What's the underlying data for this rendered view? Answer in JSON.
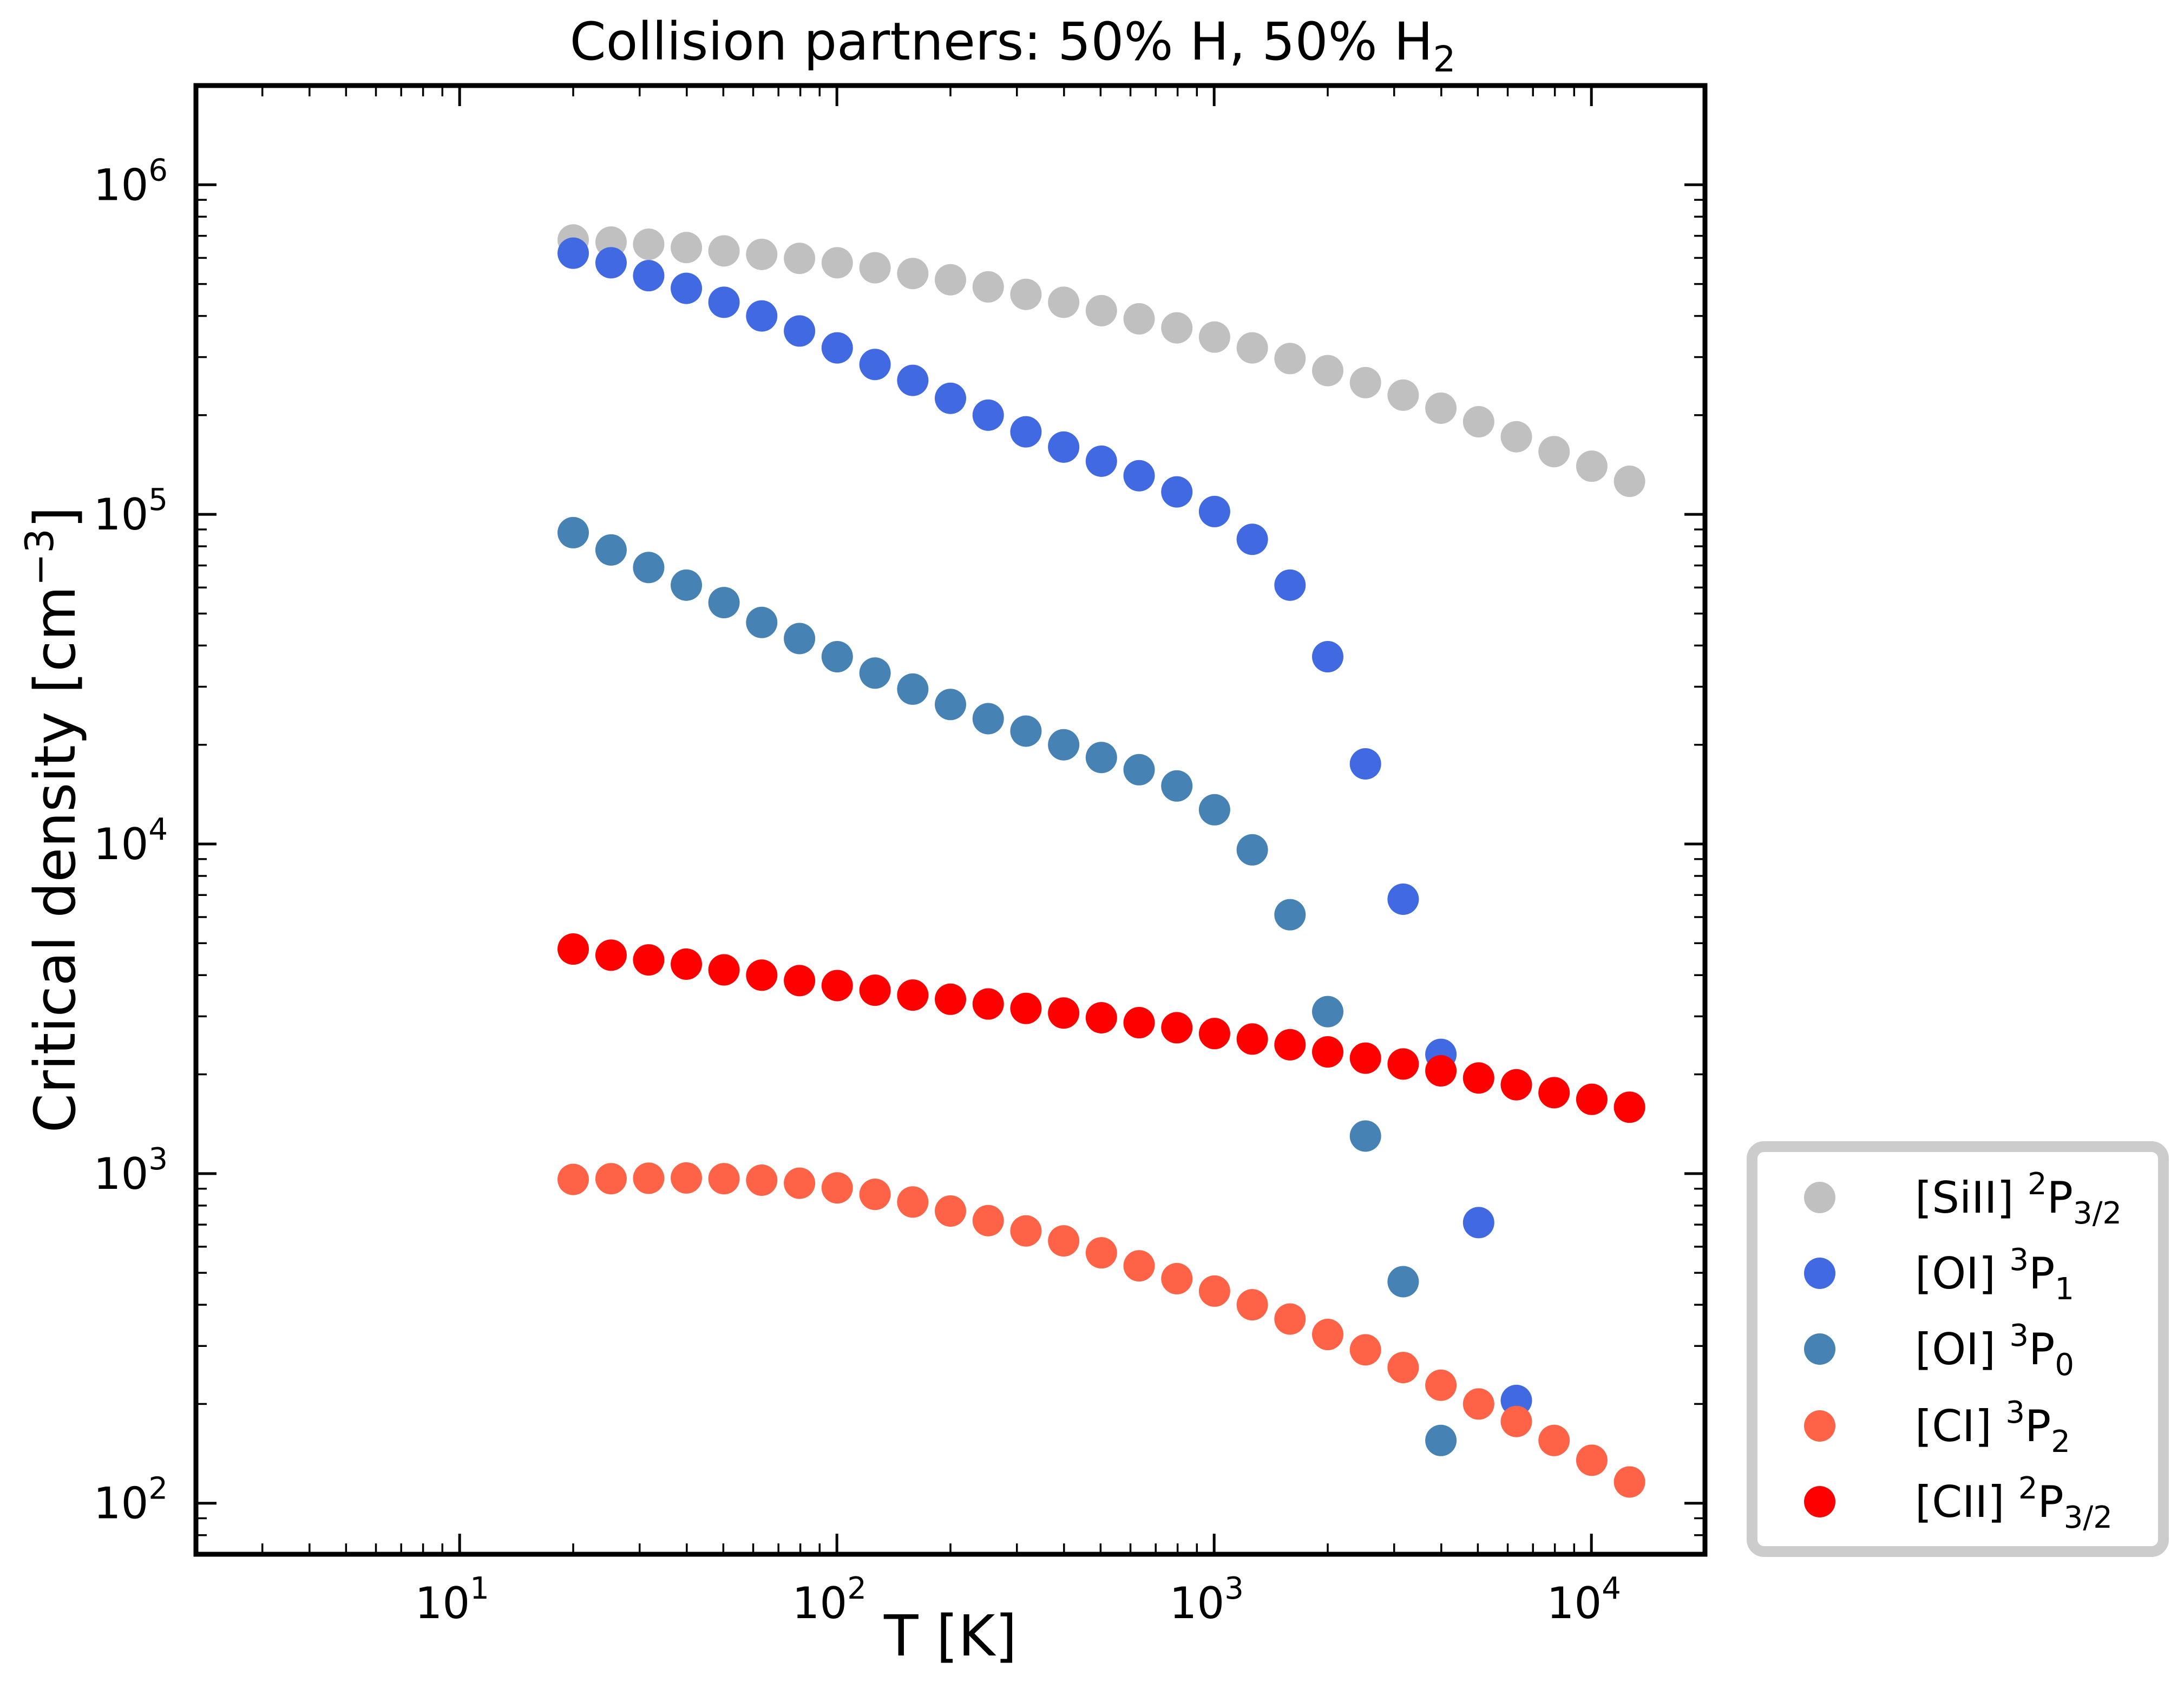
{
  "chart_data": {
    "type": "scatter",
    "title": "Collision partners: 50% H, 50% H",
    "title_subscript": "2",
    "xlabel": "T [K]",
    "ylabel": "Critical density [cm",
    "ylabel_superscript": "−3",
    "ylabel_suffix": "]",
    "xscale": "log",
    "yscale": "log",
    "xlim": [
      2,
      20000
    ],
    "ylim": [
      70,
      2000000
    ],
    "x_ticks": [
      {
        "value": 10,
        "base": "10",
        "exp": "1"
      },
      {
        "value": 100,
        "base": "10",
        "exp": "2"
      },
      {
        "value": 1000,
        "base": "10",
        "exp": "3"
      },
      {
        "value": 10000,
        "base": "10",
        "exp": "4"
      }
    ],
    "y_ticks": [
      {
        "value": 100,
        "base": "10",
        "exp": "2"
      },
      {
        "value": 1000,
        "base": "10",
        "exp": "3"
      },
      {
        "value": 10000,
        "base": "10",
        "exp": "4"
      },
      {
        "value": 100000,
        "base": "10",
        "exp": "5"
      },
      {
        "value": 1000000,
        "base": "10",
        "exp": "6"
      }
    ],
    "grid": false,
    "legend_position": "outside-lower-right",
    "series": [
      {
        "name": "[SiII] 2P3/2",
        "legend": {
          "prefix": "[SiII] ",
          "sup": "2",
          "main": "P",
          "sub": "3/2"
        },
        "color": "#c0c0c0",
        "x": [
          20,
          25.2,
          31.7,
          39.9,
          50.2,
          63.2,
          79.6,
          100.2,
          126.2,
          158.9,
          200,
          251.8,
          317,
          399.1,
          502.4,
          632.5,
          796.3,
          1002.4,
          1262,
          1588.7,
          2000,
          2517.9,
          3169.8,
          3990.5,
          5023.8,
          6324.6,
          7962.1,
          10023.7,
          12619.1
        ],
        "y": [
          680000,
          670000,
          660000,
          645000,
          630000,
          615000,
          598000,
          580000,
          560000,
          538000,
          515000,
          490000,
          465000,
          440000,
          415000,
          392000,
          368000,
          345000,
          320000,
          297000,
          273000,
          251000,
          230000,
          210000,
          191000,
          172000,
          155000,
          140000,
          126000
        ]
      },
      {
        "name": "[OI] 3P1",
        "legend": {
          "prefix": "[OI] ",
          "sup": "3",
          "main": "P",
          "sub": "1"
        },
        "color": "#4169e1",
        "x": [
          20,
          25.2,
          31.7,
          39.9,
          50.2,
          63.2,
          79.6,
          100.2,
          126.2,
          158.9,
          200,
          251.8,
          317,
          399.1,
          502.4,
          632.5,
          796.3,
          1002.4,
          1262,
          1588.7,
          2000,
          2517.9,
          3169.8,
          3990.5,
          5023.8,
          6324.6
        ],
        "y": [
          620000,
          580000,
          530000,
          485000,
          440000,
          400000,
          360000,
          320000,
          285000,
          255000,
          225000,
          200000,
          178000,
          160000,
          145000,
          131000,
          117000,
          102000,
          84000,
          61000,
          37000,
          17500,
          6800,
          2300,
          710,
          205
        ]
      },
      {
        "name": "[OI] 3P0",
        "legend": {
          "prefix": "[OI] ",
          "sup": "3",
          "main": "P",
          "sub": "0"
        },
        "color": "#4682b4",
        "x": [
          20,
          25.2,
          31.7,
          39.9,
          50.2,
          63.2,
          79.6,
          100.2,
          126.2,
          158.9,
          200,
          251.8,
          317,
          399.1,
          502.4,
          632.5,
          796.3,
          1002.4,
          1262,
          1588.7,
          2000,
          2517.9,
          3169.8,
          3990.5
        ],
        "y": [
          88000,
          78000,
          69000,
          61000,
          54000,
          47000,
          42000,
          37000,
          33000,
          29500,
          26500,
          24000,
          22000,
          20000,
          18300,
          16800,
          15000,
          12700,
          9600,
          6100,
          3100,
          1300,
          470,
          155
        ]
      },
      {
        "name": "[CI] 3P2",
        "legend": {
          "prefix": "[CI] ",
          "sup": "3",
          "main": "P",
          "sub": "2"
        },
        "color": "#ff6347",
        "x": [
          20,
          25.2,
          31.7,
          39.9,
          50.2,
          63.2,
          79.6,
          100.2,
          126.2,
          158.9,
          200,
          251.8,
          317,
          399.1,
          502.4,
          632.5,
          796.3,
          1002.4,
          1262,
          1588.7,
          2000,
          2517.9,
          3169.8,
          3990.5,
          5023.8,
          6324.6,
          7962.1,
          10023.7,
          12619.1
        ],
        "y": [
          960,
          965,
          968,
          970,
          965,
          955,
          935,
          905,
          865,
          820,
          770,
          720,
          670,
          625,
          575,
          525,
          480,
          440,
          400,
          362,
          325,
          292,
          258,
          228,
          200,
          177,
          155,
          135,
          116
        ]
      },
      {
        "name": "[CII] 2P3/2",
        "legend": {
          "prefix": "[CII] ",
          "sup": "2",
          "main": "P",
          "sub": "3/2"
        },
        "color": "#ff0000",
        "x": [
          20,
          25.2,
          31.7,
          39.9,
          50.2,
          63.2,
          79.6,
          100.2,
          126.2,
          158.9,
          200,
          251.8,
          317,
          399.1,
          502.4,
          632.5,
          796.3,
          1002.4,
          1262,
          1588.7,
          2000,
          2517.9,
          3169.8,
          3990.5,
          5023.8,
          6324.6,
          7962.1,
          10023.7,
          12619.1
        ],
        "y": [
          4800,
          4600,
          4450,
          4320,
          4150,
          4000,
          3850,
          3720,
          3600,
          3480,
          3380,
          3270,
          3170,
          3070,
          2970,
          2870,
          2770,
          2660,
          2560,
          2460,
          2340,
          2240,
          2150,
          2050,
          1950,
          1860,
          1760,
          1680,
          1590
        ]
      }
    ]
  }
}
